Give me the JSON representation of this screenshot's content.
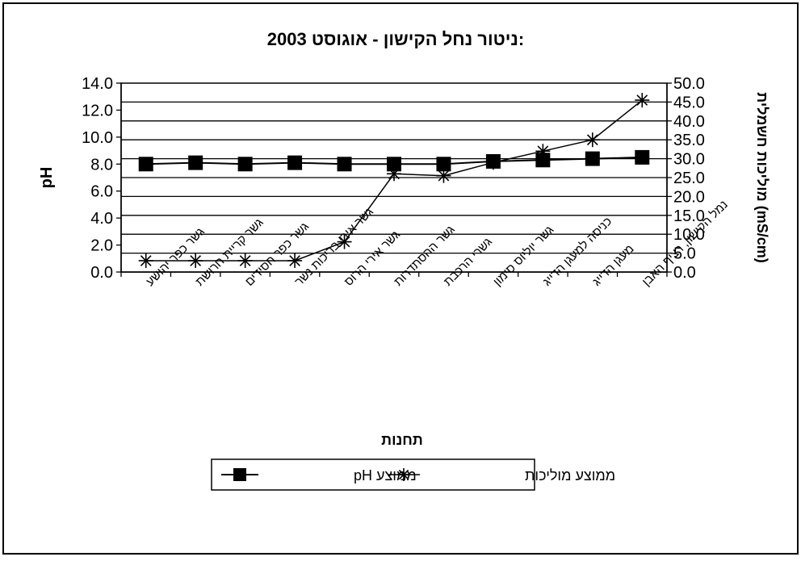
{
  "chart_data": {
    "type": "line",
    "title": "ניטור נחל הקישון - אוגוסט 2003:",
    "xlabel": "תחנות",
    "ylabel_left": "pH",
    "ylabel_right": "מוליכות חשמלית (mS/cm)",
    "ylim_left": [
      0,
      14
    ],
    "ylim_right": [
      0,
      50
    ],
    "yticks_left": [
      "0.0",
      "2.0",
      "4.0",
      "6.0",
      "8.0",
      "10.0",
      "12.0",
      "14.0"
    ],
    "yticks_right": [
      "0.0",
      "5.0",
      "10.0",
      "15.0",
      "20.0",
      "25.0",
      "30.0",
      "35.0",
      "40.0",
      "45.0",
      "50.0"
    ],
    "grid": true,
    "legend_position": "bottom-center",
    "categories": [
      "גשר כפר יהושע",
      "גשר קריית חרושת",
      "גשר כפר חסידים",
      "גשר אירי בריכות נשר",
      "גשר אירי הרוס",
      "גשר ההסתדרות",
      "גשרי הרכבת",
      "גשר יוליוס סימון",
      "כניסה למעגן הדייג",
      "מעגן הדייג",
      "נמל הקישון, רציף האבן"
    ],
    "series": [
      {
        "name": "ממוצע pH",
        "axis": "left",
        "marker": "square",
        "values": [
          8.0,
          8.1,
          8.0,
          8.1,
          8.0,
          8.0,
          8.0,
          8.2,
          8.3,
          8.4,
          8.5
        ]
      },
      {
        "name": "ממוצע מוליכות",
        "axis": "right",
        "marker": "star",
        "values": [
          3.0,
          3.0,
          3.0,
          3.0,
          8.0,
          26.0,
          25.5,
          29.0,
          32.0,
          35.0,
          45.5
        ]
      }
    ],
    "colors": {
      "line": "#000000",
      "grid": "#000000",
      "background": "#ffffff"
    }
  }
}
